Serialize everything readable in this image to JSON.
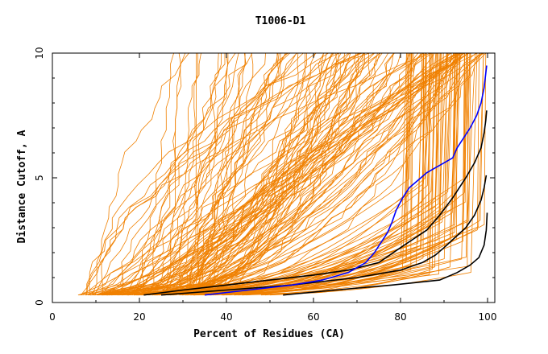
{
  "chart_data": {
    "type": "line",
    "title": "T1006-D1",
    "xlabel": "Percent of Residues (CA)",
    "ylabel": "Distance Cutoff, A",
    "xlim": [
      0,
      100
    ],
    "ylim": [
      0,
      10
    ],
    "x_ticks": [
      0,
      20,
      40,
      60,
      80,
      100
    ],
    "y_ticks": [
      0,
      5,
      10
    ],
    "grid": false,
    "colors": {
      "models": "#f08000",
      "highlight": "#0000ff",
      "reference": "#000000"
    },
    "series_groups": {
      "orange_count": 120,
      "black": [
        {
          "x": [
            21,
            30,
            40,
            50,
            60,
            68,
            75,
            80,
            86,
            89,
            92,
            95,
            97,
            98.5,
            99.2,
            99.6,
            99.8
          ],
          "y": [
            0.3,
            0.5,
            0.7,
            0.9,
            1.1,
            1.3,
            1.6,
            2.2,
            2.9,
            3.5,
            4.2,
            5.0,
            5.6,
            6.2,
            6.8,
            7.3,
            7.7
          ]
        },
        {
          "x": [
            25,
            40,
            55,
            70,
            80,
            85,
            88,
            90,
            92.5,
            95,
            97,
            98.5,
            99.2,
            99.7
          ],
          "y": [
            0.3,
            0.5,
            0.7,
            1.0,
            1.3,
            1.6,
            1.9,
            2.2,
            2.6,
            3.0,
            3.5,
            4.1,
            4.6,
            5.1
          ]
        },
        {
          "x": [
            53,
            65,
            78,
            89,
            93,
            96,
            98,
            99.2,
            99.7,
            99.9
          ],
          "y": [
            0.3,
            0.5,
            0.7,
            0.9,
            1.2,
            1.5,
            1.8,
            2.3,
            2.9,
            3.6
          ]
        }
      ],
      "blue": {
        "x": [
          35,
          45,
          55,
          62,
          68,
          72,
          74,
          75.5,
          77,
          78,
          79,
          80.5,
          82,
          84,
          86,
          88,
          90,
          92,
          93,
          94.5,
          96,
          97.5,
          98.5,
          99.2,
          99.8
        ],
        "y": [
          0.3,
          0.5,
          0.7,
          0.9,
          1.2,
          1.6,
          2.0,
          2.4,
          2.8,
          3.2,
          3.7,
          4.2,
          4.6,
          4.9,
          5.2,
          5.4,
          5.6,
          5.8,
          6.2,
          6.6,
          7.0,
          7.5,
          8.0,
          8.6,
          9.5
        ]
      }
    }
  }
}
